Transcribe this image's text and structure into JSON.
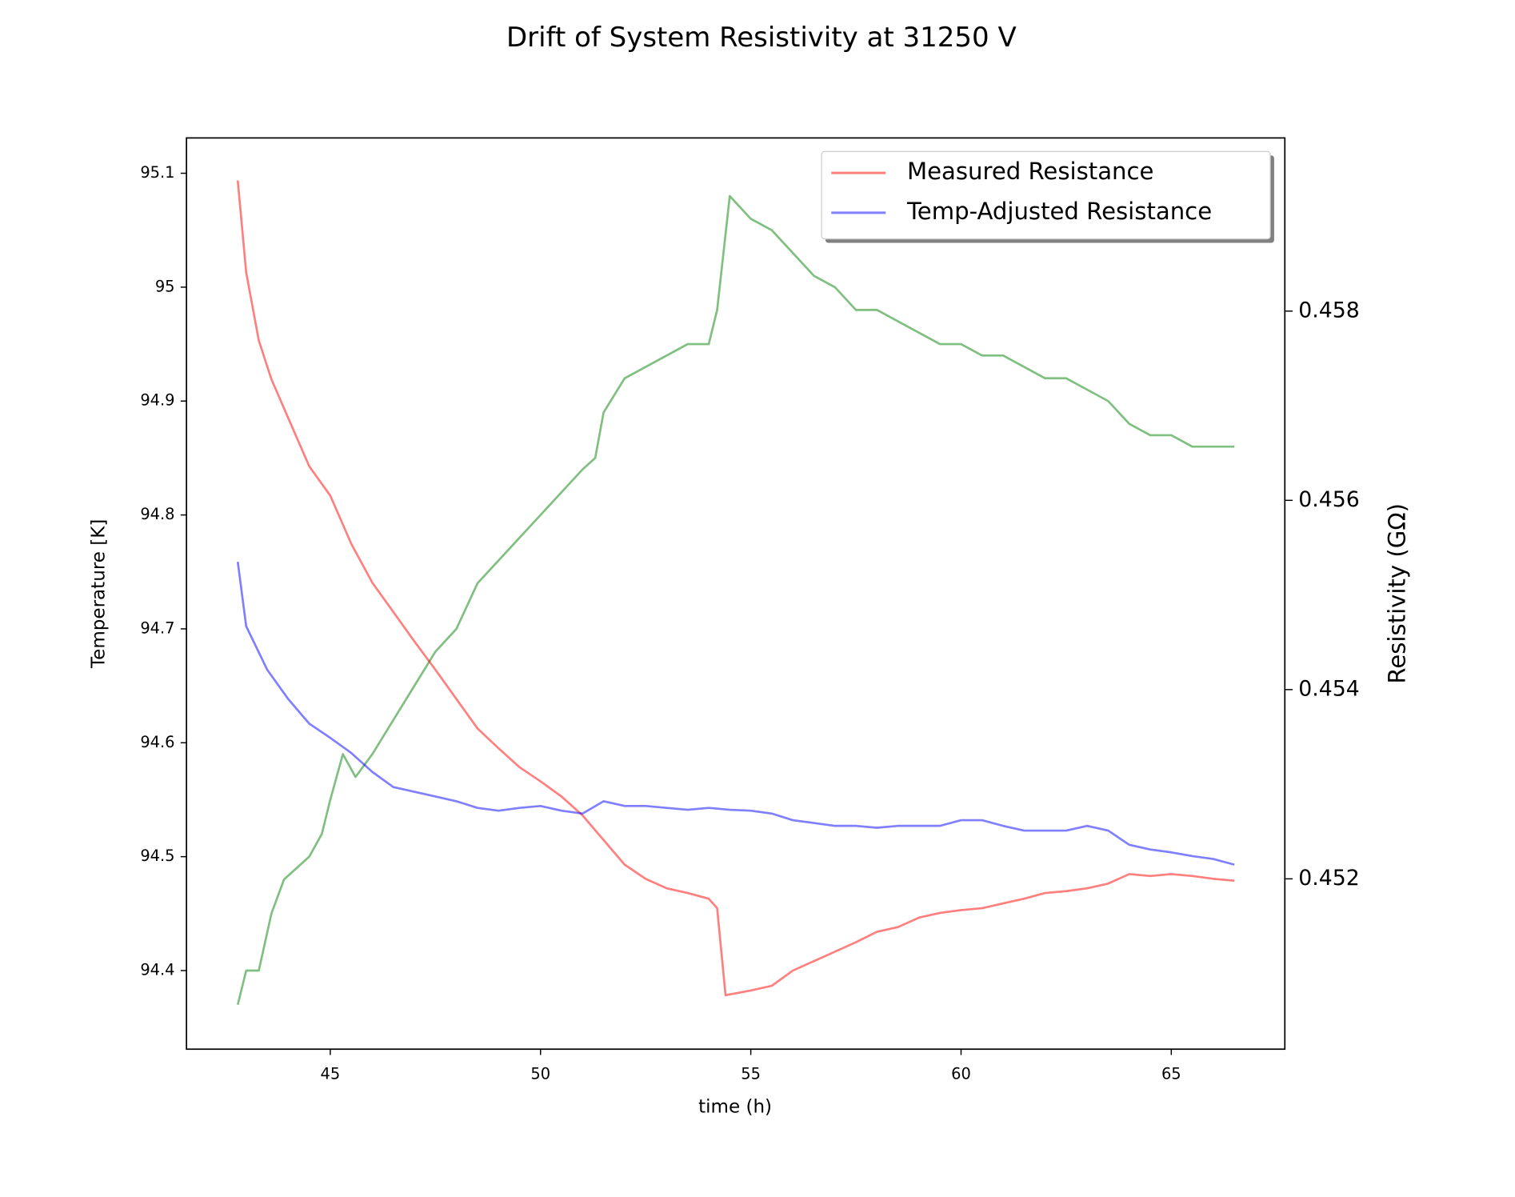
{
  "chart_data": {
    "type": "line",
    "title": "Drift of System Resistivity at 31250 V",
    "xlabel": "time (h)",
    "ylabel": "Temperature [K]",
    "y2label": "Resistivity (GΩ)",
    "xlim": [
      41.58,
      67.7
    ],
    "xticks": [
      45,
      50,
      55,
      60,
      65
    ],
    "ylim": [
      94.331,
      95.131
    ],
    "yticks": [
      94.4,
      94.5,
      94.6,
      94.7,
      94.8,
      94.9,
      95.0,
      95.1
    ],
    "y2lim": [
      0.4502,
      0.45983
    ],
    "y2ticks": [
      0.452,
      0.454,
      0.456,
      0.458
    ],
    "legend": "upper right",
    "series": [
      {
        "color": "#008000",
        "x": [
          42.8,
          43.0,
          43.3,
          43.6,
          43.9,
          44.2,
          44.5,
          44.8,
          45.0,
          45.3,
          45.6,
          46.0,
          46.5,
          47.0,
          47.5,
          48.0,
          48.5,
          49.0,
          49.5,
          50.0,
          50.5,
          51.0,
          51.3,
          51.5,
          52.0,
          52.5,
          53.0,
          53.5,
          54.0,
          54.2,
          54.5,
          55.0,
          55.5,
          56.0,
          56.5,
          57.0,
          57.5,
          58.0,
          58.5,
          59.0,
          59.5,
          60.0,
          60.5,
          61.0,
          61.5,
          62.0,
          62.5,
          63.0,
          63.5,
          64.0,
          64.5,
          65.0,
          65.5,
          66.0,
          66.5
        ],
        "values": [
          94.37,
          94.4,
          94.4,
          94.45,
          94.48,
          94.49,
          94.5,
          94.52,
          94.55,
          94.59,
          94.57,
          94.59,
          94.62,
          94.65,
          94.68,
          94.7,
          94.74,
          94.76,
          94.78,
          94.8,
          94.82,
          94.84,
          94.85,
          94.89,
          94.92,
          94.93,
          94.94,
          94.95,
          94.95,
          94.98,
          95.08,
          95.06,
          95.05,
          95.03,
          95.01,
          95.0,
          94.98,
          94.98,
          94.97,
          94.96,
          94.95,
          94.95,
          94.94,
          94.94,
          94.93,
          94.92,
          94.92,
          94.91,
          94.9,
          94.88,
          94.87,
          94.87,
          94.86,
          94.86,
          94.86
        ]
      },
      {
        "name": "Measured Resistance",
        "color": "#ff0000",
        "axis": "y2",
        "x": [
          42.8,
          43.0,
          43.3,
          43.6,
          44.0,
          44.5,
          45.0,
          45.5,
          46.0,
          46.5,
          47.0,
          47.5,
          48.0,
          48.5,
          49.0,
          49.5,
          50.0,
          50.5,
          51.0,
          51.5,
          52.0,
          52.5,
          53.0,
          53.5,
          54.0,
          54.2,
          54.4,
          55.0,
          55.5,
          56.0,
          56.5,
          57.0,
          57.5,
          58.0,
          58.5,
          59.0,
          59.5,
          60.0,
          60.5,
          61.0,
          61.5,
          62.0,
          62.5,
          63.0,
          63.5,
          64.0,
          64.5,
          65.0,
          65.5,
          66.0,
          66.5
        ],
        "values": [
          0.45938,
          0.45841,
          0.45769,
          0.45728,
          0.45687,
          0.45636,
          0.45605,
          0.45554,
          0.45513,
          0.45482,
          0.45451,
          0.45421,
          0.4539,
          0.45359,
          0.45338,
          0.45318,
          0.45303,
          0.45287,
          0.45267,
          0.45241,
          0.45215,
          0.452,
          0.4519,
          0.45185,
          0.45179,
          0.45169,
          0.45077,
          0.45082,
          0.45087,
          0.45103,
          0.45113,
          0.45123,
          0.45133,
          0.45144,
          0.45149,
          0.45159,
          0.45164,
          0.45167,
          0.45169,
          0.45174,
          0.45179,
          0.45185,
          0.45187,
          0.4519,
          0.45195,
          0.45205,
          0.45203,
          0.45205,
          0.45203,
          0.452,
          0.45198
        ]
      },
      {
        "name": "Temp-Adjusted Resistance",
        "color": "#0000ff",
        "axis": "y2",
        "x": [
          42.8,
          43.0,
          43.5,
          44.0,
          44.5,
          45.0,
          45.5,
          46.0,
          46.5,
          47.0,
          47.5,
          48.0,
          48.5,
          49.0,
          49.5,
          50.0,
          50.5,
          51.0,
          51.5,
          52.0,
          52.5,
          53.0,
          53.5,
          54.0,
          54.5,
          55.0,
          55.5,
          56.0,
          56.5,
          57.0,
          57.5,
          58.0,
          58.5,
          59.0,
          59.5,
          60.0,
          60.5,
          61.0,
          61.5,
          62.0,
          62.5,
          63.0,
          63.5,
          64.0,
          64.5,
          65.0,
          65.5,
          66.0,
          66.5
        ],
        "values": [
          0.45535,
          0.45467,
          0.45421,
          0.4539,
          0.45364,
          0.45349,
          0.45333,
          0.45313,
          0.45297,
          0.45292,
          0.45287,
          0.45282,
          0.45275,
          0.45272,
          0.45275,
          0.45277,
          0.45272,
          0.45269,
          0.45282,
          0.45277,
          0.45277,
          0.45275,
          0.45273,
          0.45275,
          0.45273,
          0.45272,
          0.45269,
          0.45262,
          0.45259,
          0.45256,
          0.45256,
          0.45254,
          0.45256,
          0.45256,
          0.45256,
          0.45262,
          0.45262,
          0.45256,
          0.45251,
          0.45251,
          0.45251,
          0.45256,
          0.45251,
          0.45236,
          0.45231,
          0.45228,
          0.45224,
          0.45221,
          0.45215
        ]
      }
    ]
  }
}
